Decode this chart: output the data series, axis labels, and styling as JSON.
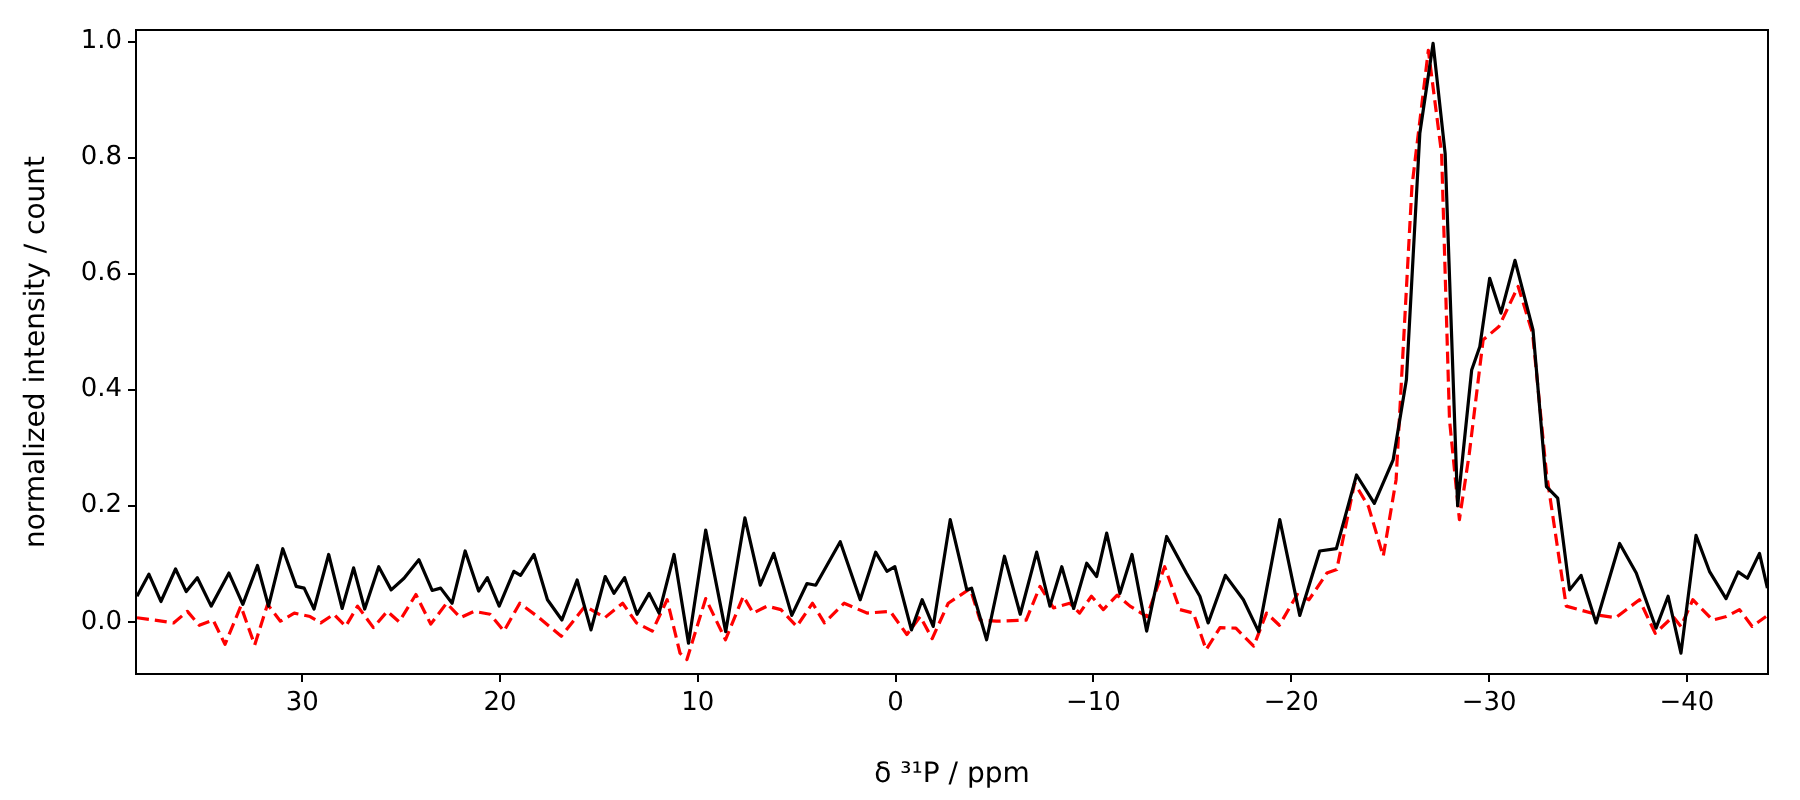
{
  "chart_data": {
    "type": "line",
    "xlabel": "δ ³¹P / ppm",
    "ylabel": "normalized intensity / count",
    "xlim": [
      38.4,
      -44.1
    ],
    "ylim": [
      -0.09,
      1.02
    ],
    "xticks": [
      30,
      20,
      10,
      0,
      {
        "value": -10,
        "label": "−10"
      },
      {
        "value": -20,
        "label": "−20"
      },
      {
        "value": -30,
        "label": "−30"
      },
      {
        "value": -40,
        "label": "−40"
      }
    ],
    "yticks": [
      {
        "value": 0,
        "label": "0.0"
      },
      0.2,
      0.4,
      0.6,
      0.8,
      {
        "value": 1,
        "label": "1.0"
      }
    ],
    "marker": "none",
    "series": [
      {
        "color": "#000000",
        "line_style": "solid",
        "x": [
          38.35,
          37.75,
          37.14,
          36.4,
          35.86,
          35.3,
          34.6,
          33.7,
          33.0,
          32.26,
          31.7,
          30.98,
          30.3,
          29.9,
          29.4,
          28.66,
          27.98,
          27.4,
          26.84,
          26.13,
          25.5,
          24.85,
          24.1,
          23.43,
          23.0,
          22.42,
          21.76,
          21.08,
          20.64,
          20.04,
          19.3,
          18.96,
          18.28,
          17.6,
          16.87,
          16.1,
          15.4,
          14.68,
          14.24,
          13.7,
          13.07,
          12.46,
          11.96,
          11.2,
          10.47,
          9.6,
          8.59,
          7.62,
          6.84,
          6.16,
          5.25,
          4.48,
          4.04,
          2.8,
          1.79,
          1.01,
          0.44,
          0.04,
          -0.8,
          -1.34,
          -1.9,
          -2.76,
          -3.6,
          -3.84,
          -4.6,
          -5.5,
          -6.3,
          -7.13,
          -7.8,
          -8.4,
          -9.0,
          -9.66,
          -10.16,
          -10.67,
          -11.34,
          -11.95,
          -12.69,
          -13.7,
          -14.7,
          -15.38,
          -15.8,
          -16.67,
          -17.58,
          -18.35,
          -19.42,
          -20.43,
          -21.44,
          -22.28,
          -23.3,
          -24.2,
          -25.15,
          -25.82,
          -26.5,
          -27.17,
          -27.78,
          -28.41,
          -29.12,
          -29.53,
          -30.03,
          -30.6,
          -31.31,
          -32.22,
          -32.9,
          -33.47,
          -34.07,
          -34.65,
          -35.41,
          -36.6,
          -37.44,
          -38.44,
          -39.05,
          -39.7,
          -40.46,
          -41.14,
          -41.98,
          -42.59,
          -43.06,
          -43.67,
          -44.07
        ],
        "values": [
          0.044,
          0.082,
          0.035,
          0.091,
          0.052,
          0.076,
          0.027,
          0.084,
          0.03,
          0.097,
          0.027,
          0.126,
          0.061,
          0.058,
          0.022,
          0.116,
          0.023,
          0.093,
          0.022,
          0.095,
          0.055,
          0.075,
          0.107,
          0.054,
          0.058,
          0.032,
          0.122,
          0.053,
          0.076,
          0.027,
          0.087,
          0.08,
          0.116,
          0.038,
          0.003,
          0.072,
          -0.014,
          0.078,
          0.049,
          0.076,
          0.013,
          0.049,
          0.015,
          0.116,
          -0.037,
          0.158,
          -0.017,
          0.179,
          0.063,
          0.118,
          0.011,
          0.066,
          0.063,
          0.138,
          0.038,
          0.12,
          0.087,
          0.095,
          -0.014,
          0.038,
          -0.008,
          0.176,
          0.055,
          0.058,
          -0.031,
          0.113,
          0.013,
          0.12,
          0.027,
          0.095,
          0.023,
          0.101,
          0.078,
          0.153,
          0.049,
          0.116,
          -0.016,
          0.147,
          0.084,
          0.044,
          -0.002,
          0.08,
          0.038,
          -0.017,
          0.176,
          0.011,
          0.122,
          0.126,
          0.253,
          0.204,
          0.279,
          0.417,
          0.842,
          0.997,
          0.807,
          0.2,
          0.434,
          0.474,
          0.592,
          0.532,
          0.623,
          0.503,
          0.233,
          0.213,
          0.055,
          0.08,
          -0.002,
          0.135,
          0.084,
          -0.011,
          0.044,
          -0.054,
          0.149,
          0.087,
          0.04,
          0.086,
          0.075,
          0.118,
          0.058
        ]
      },
      {
        "color": "#ff0000",
        "line_style": "dashed",
        "x": [
          38.35,
          37.5,
          36.5,
          35.8,
          35.2,
          34.5,
          33.9,
          33.1,
          32.4,
          31.75,
          31.1,
          30.4,
          29.6,
          29.06,
          28.4,
          27.8,
          27.2,
          26.4,
          25.7,
          25.1,
          24.25,
          23.5,
          22.7,
          22.0,
          21.3,
          20.5,
          19.8,
          19.0,
          18.1,
          16.9,
          15.7,
          14.7,
          13.8,
          13.1,
          12.3,
          11.55,
          10.9,
          10.55,
          9.6,
          8.6,
          7.7,
          7.2,
          6.5,
          5.8,
          5.0,
          4.2,
          3.6,
          2.6,
          1.45,
          0.27,
          -0.57,
          -1.24,
          -1.85,
          -2.66,
          -3.77,
          -4.27,
          -5.1,
          -6.6,
          -7.3,
          -7.98,
          -8.8,
          -9.3,
          -9.9,
          -10.5,
          -11.2,
          -11.85,
          -12.7,
          -13.6,
          -14.37,
          -15.05,
          -15.7,
          -16.4,
          -17.2,
          -18.1,
          -18.75,
          -19.4,
          -20.3,
          -20.9,
          -21.8,
          -22.3,
          -23.2,
          -23.9,
          -24.65,
          -25.3,
          -26.1,
          -26.93,
          -27.6,
          -28.0,
          -28.5,
          -29.0,
          -29.7,
          -30.5,
          -31.47,
          -32.2,
          -32.9,
          -33.9,
          -35.6,
          -36.4,
          -37.6,
          -38.4,
          -39.3,
          -39.7,
          -40.3,
          -41.3,
          -42.0,
          -42.66,
          -43.3,
          -44.0
        ],
        "values": [
          0.007,
          0.003,
          -0.002,
          0.018,
          -0.006,
          0.003,
          -0.039,
          0.027,
          -0.04,
          0.03,
          0.001,
          0.015,
          0.009,
          -0.002,
          0.013,
          -0.008,
          0.027,
          -0.01,
          0.018,
          0.0,
          0.047,
          -0.004,
          0.032,
          0.007,
          0.018,
          0.013,
          -0.016,
          0.032,
          0.009,
          -0.025,
          0.027,
          0.007,
          0.032,
          -0.002,
          -0.016,
          0.038,
          -0.054,
          -0.065,
          0.04,
          -0.031,
          0.044,
          0.015,
          0.027,
          0.021,
          -0.008,
          0.032,
          -0.002,
          0.032,
          0.015,
          0.018,
          -0.022,
          0.009,
          -0.029,
          0.032,
          0.057,
          0.003,
          0.001,
          0.003,
          0.061,
          0.024,
          0.032,
          0.015,
          0.044,
          0.021,
          0.046,
          0.027,
          0.009,
          0.095,
          0.021,
          0.015,
          -0.048,
          -0.01,
          -0.011,
          -0.042,
          0.015,
          -0.006,
          0.047,
          0.038,
          0.084,
          0.09,
          0.239,
          0.199,
          0.113,
          0.245,
          0.75,
          0.985,
          0.807,
          0.348,
          0.176,
          0.29,
          0.486,
          0.509,
          0.578,
          0.497,
          0.256,
          0.027,
          0.011,
          0.007,
          0.038,
          -0.02,
          0.009,
          -0.008,
          0.038,
          0.003,
          0.009,
          0.021,
          -0.008,
          0.009
        ]
      }
    ]
  }
}
